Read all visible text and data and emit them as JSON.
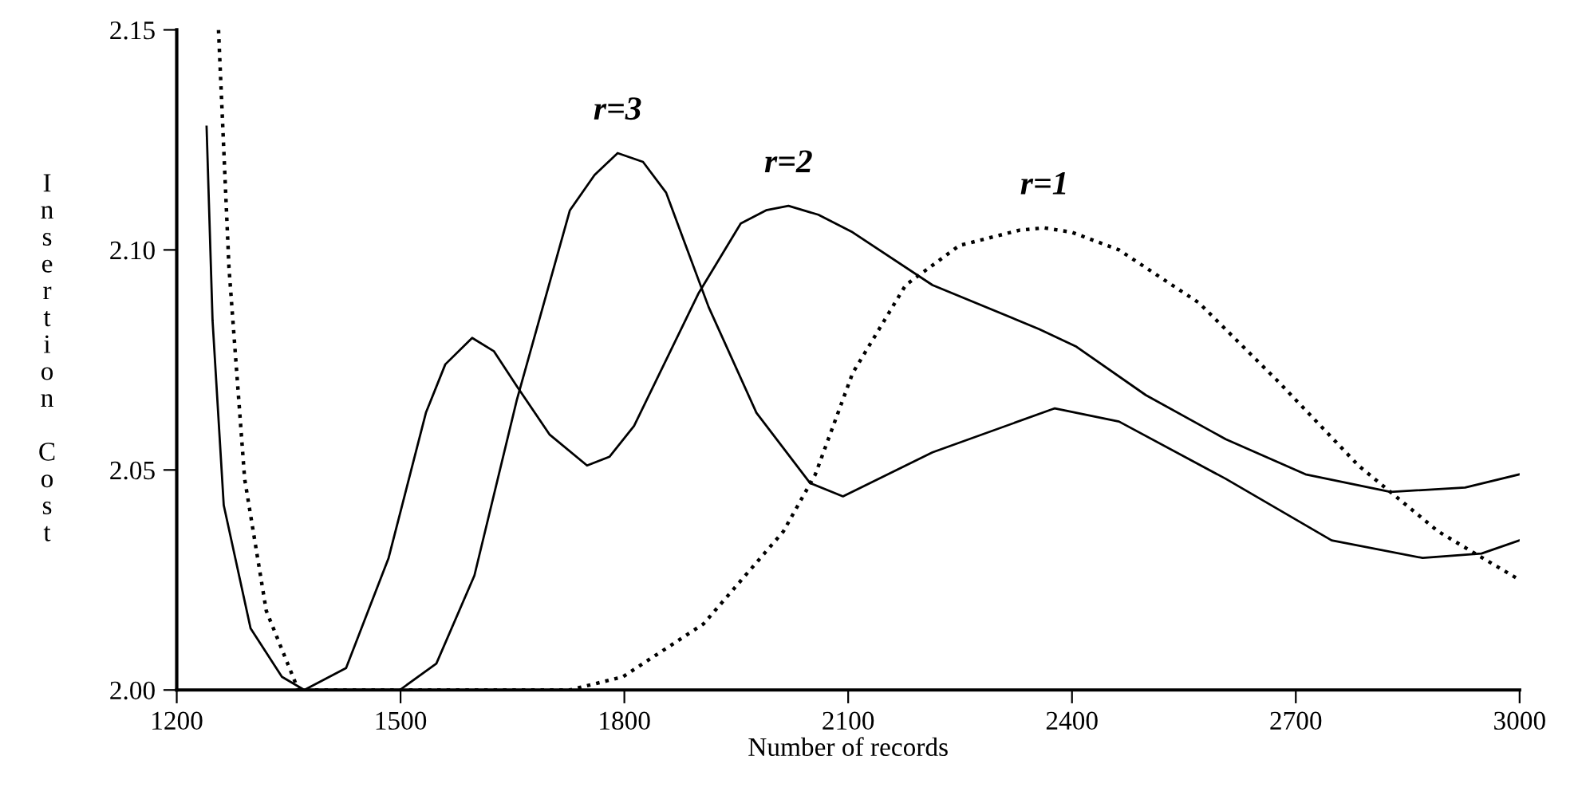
{
  "chart_data": {
    "type": "line",
    "xlabel": "Number of records",
    "ylabel": "Insertion Cost",
    "xlim": [
      1200,
      3000
    ],
    "xticks": [
      1200,
      1500,
      1800,
      2100,
      2400,
      2700,
      3000
    ],
    "ylim": [
      2.0,
      2.15
    ],
    "yticks": [
      {
        "value": 2.0,
        "label": "2.00"
      },
      {
        "value": 2.05,
        "label": "2.05"
      },
      {
        "value": 2.1,
        "label": "2.10"
      },
      {
        "value": 2.15,
        "label": "2.15"
      }
    ],
    "grid": false,
    "legend": false,
    "marker": "none",
    "series": [
      {
        "name": "r=2",
        "color": "#000000",
        "line_style": "solid",
        "x": [
          1240,
          1248,
          1263,
          1299,
          1341,
          1371,
          1427,
          1484,
          1534,
          1560,
          1596,
          1625,
          1656,
          1700,
          1750,
          1780,
          1813,
          1899,
          1956,
          1990,
          2020,
          2060,
          2106,
          2213,
          2356,
          2406,
          2499,
          2606,
          2713,
          2827,
          2927,
          3000
        ],
        "values": [
          2.128,
          2.084,
          2.042,
          2.014,
          2.003,
          2.0,
          2.005,
          2.03,
          2.063,
          2.074,
          2.08,
          2.077,
          2.069,
          2.058,
          2.051,
          2.053,
          2.06,
          2.09,
          2.106,
          2.109,
          2.11,
          2.108,
          2.104,
          2.092,
          2.082,
          2.078,
          2.067,
          2.057,
          2.049,
          2.045,
          2.046,
          2.049
        ]
      },
      {
        "name": "r=3",
        "color": "#000000",
        "line_style": "solid",
        "x": [
          1360,
          1470,
          1499,
          1548,
          1599,
          1656,
          1727,
          1760,
          1791,
          1825,
          1856,
          1880,
          1913,
          1977,
          2049,
          2093,
          2213,
          2377,
          2463,
          2606,
          2748,
          2870,
          2949,
          3000
        ],
        "values": [
          2.0,
          2.0,
          2.0,
          2.006,
          2.026,
          2.066,
          2.109,
          2.117,
          2.122,
          2.12,
          2.113,
          2.102,
          2.087,
          2.063,
          2.047,
          2.044,
          2.054,
          2.064,
          2.061,
          2.048,
          2.034,
          2.03,
          2.031,
          2.034
        ]
      },
      {
        "name": "r=1",
        "color": "#000000",
        "line_style": "dotted",
        "x": [
          1256,
          1270,
          1291,
          1320,
          1363,
          1727,
          1798,
          1906,
          2013,
          2056,
          2106,
          2177,
          2249,
          2330,
          2363,
          2400,
          2463,
          2570,
          2677,
          2784,
          2891,
          3000
        ],
        "values": [
          2.15,
          2.096,
          2.048,
          2.018,
          2.0,
          2.0,
          2.003,
          2.015,
          2.036,
          2.049,
          2.072,
          2.092,
          2.101,
          2.1045,
          2.105,
          2.104,
          2.1,
          2.088,
          2.07,
          2.051,
          2.036,
          2.025
        ]
      }
    ]
  }
}
